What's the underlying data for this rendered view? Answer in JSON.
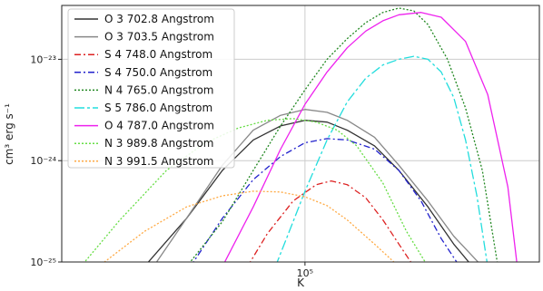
{
  "chart_data": {
    "type": "line",
    "xlabel": "K",
    "ylabel": "cm³ erg s⁻¹",
    "xscale": "log",
    "yscale": "log",
    "xlim": [
      35000,
      275000
    ],
    "ylim": [
      1e-25,
      3.4e-23
    ],
    "xticks": [
      {
        "value": 100000,
        "label": "10⁵"
      }
    ],
    "yticks": [
      {
        "value": 1e-25,
        "label": "10⁻²⁵"
      },
      {
        "value": 1e-24,
        "label": "10⁻²⁴"
      },
      {
        "value": 1e-23,
        "label": "10⁻²³"
      }
    ],
    "grid": true,
    "legend_position": "top-left",
    "series": [
      {
        "name": "O 3 702.8 Angstrom",
        "color": "#333333",
        "dash": "",
        "x": [
          50000,
          60000,
          70000,
          80000,
          90000,
          100000,
          110000,
          120000,
          135000,
          150000,
          170000,
          190000,
          210000
        ],
        "y": [
          9e-26,
          2.7e-25,
          8e-25,
          1.6e-24,
          2.2e-24,
          2.5e-24,
          2.4e-24,
          2e-24,
          1.4e-24,
          8e-25,
          3.5e-25,
          1.5e-25,
          8e-26
        ]
      },
      {
        "name": "O 3 703.5 Angstrom",
        "color": "#888888",
        "dash": "",
        "x": [
          52000,
          60000,
          70000,
          80000,
          90000,
          100000,
          110000,
          120000,
          135000,
          150000,
          170000,
          190000,
          215000
        ],
        "y": [
          9e-26,
          2.7e-25,
          9e-25,
          2e-24,
          2.8e-24,
          3.2e-24,
          3e-24,
          2.5e-24,
          1.7e-24,
          9e-25,
          4e-25,
          1.8e-25,
          9e-26
        ]
      },
      {
        "name": "S 4 748.0 Angstrom",
        "color": "#dd2222",
        "dash": "7,3,2,3",
        "x": [
          78000,
          85000,
          95000,
          105000,
          112000,
          120000,
          130000,
          140000,
          150000,
          160000
        ],
        "y": [
          9e-26,
          1.9e-25,
          4e-25,
          5.8e-25,
          6.3e-25,
          5.8e-25,
          4.3e-25,
          2.6e-25,
          1.5e-25,
          9e-26
        ]
      },
      {
        "name": "S 4 750.0 Angstrom",
        "color": "#2222cc",
        "dash": "7,3,2,3",
        "x": [
          61000,
          70000,
          80000,
          90000,
          100000,
          110000,
          120000,
          135000,
          150000,
          165000,
          180000,
          195000
        ],
        "y": [
          9e-26,
          2.7e-25,
          6.5e-25,
          1.1e-24,
          1.5e-24,
          1.65e-24,
          1.6e-24,
          1.3e-24,
          8e-25,
          4e-25,
          1.7e-25,
          9e-26
        ]
      },
      {
        "name": "N 4 765.0 Angstrom",
        "color": "#228822",
        "dash": "2,2",
        "x": [
          60000,
          70000,
          80000,
          90000,
          100000,
          110000,
          120000,
          130000,
          140000,
          150000,
          160000,
          170000,
          185000,
          200000,
          215000,
          230000
        ],
        "y": [
          9e-26,
          2.5e-25,
          8e-25,
          2.2e-24,
          5e-24,
          1e-23,
          1.6e-23,
          2.3e-23,
          2.9e-23,
          3.2e-23,
          3e-23,
          2.2e-23,
          1e-23,
          3.3e-24,
          8e-25,
          9e-26
        ]
      },
      {
        "name": "S 5 786.0 Angstrom",
        "color": "#22dddd",
        "dash": "11,3,3,3",
        "x": [
          88000,
          95000,
          100000,
          110000,
          120000,
          130000,
          140000,
          150000,
          160000,
          170000,
          180000,
          190000,
          200000,
          210000,
          220000
        ],
        "y": [
          9e-26,
          2.5e-25,
          5e-25,
          1.6e-24,
          3.8e-24,
          6.5e-24,
          8.8e-24,
          1e-23,
          1.07e-23,
          1e-23,
          7.5e-24,
          4.2e-24,
          1.6e-24,
          4.5e-25,
          9e-26
        ]
      },
      {
        "name": "O 4 787.0 Angstrom",
        "color": "#ee22ee",
        "dash": "",
        "x": [
          70000,
          80000,
          90000,
          100000,
          110000,
          120000,
          130000,
          140000,
          150000,
          165000,
          180000,
          200000,
          220000,
          240000,
          250000
        ],
        "y": [
          9e-26,
          3.5e-25,
          1.3e-24,
          3.6e-24,
          7.5e-24,
          1.3e-23,
          1.9e-23,
          2.4e-23,
          2.75e-23,
          2.9e-23,
          2.6e-23,
          1.5e-23,
          4.5e-24,
          5.5e-25,
          9e-26
        ]
      },
      {
        "name": "N 3 989.8 Angstrom",
        "color": "#66dd44",
        "dash": "2,2",
        "x": [
          38000,
          45000,
          55000,
          65000,
          75000,
          85000,
          95000,
          105000,
          115000,
          125000,
          140000,
          155000,
          170000
        ],
        "y": [
          9e-26,
          2.6e-25,
          8e-25,
          1.5e-24,
          2.1e-24,
          2.5e-24,
          2.6e-24,
          2.4e-24,
          2e-24,
          1.4e-24,
          6e-25,
          2e-25,
          9e-26
        ]
      },
      {
        "name": "N 3 991.5 Angstrom",
        "color": "#ffaa44",
        "dash": "2,2",
        "x": [
          41000,
          50000,
          60000,
          70000,
          80000,
          90000,
          100000,
          110000,
          120000,
          135000,
          150000
        ],
        "y": [
          9e-26,
          2e-25,
          3.5e-25,
          4.5e-25,
          5e-25,
          4.9e-25,
          4.4e-25,
          3.6e-25,
          2.6e-25,
          1.5e-25,
          9e-26
        ]
      }
    ]
  }
}
